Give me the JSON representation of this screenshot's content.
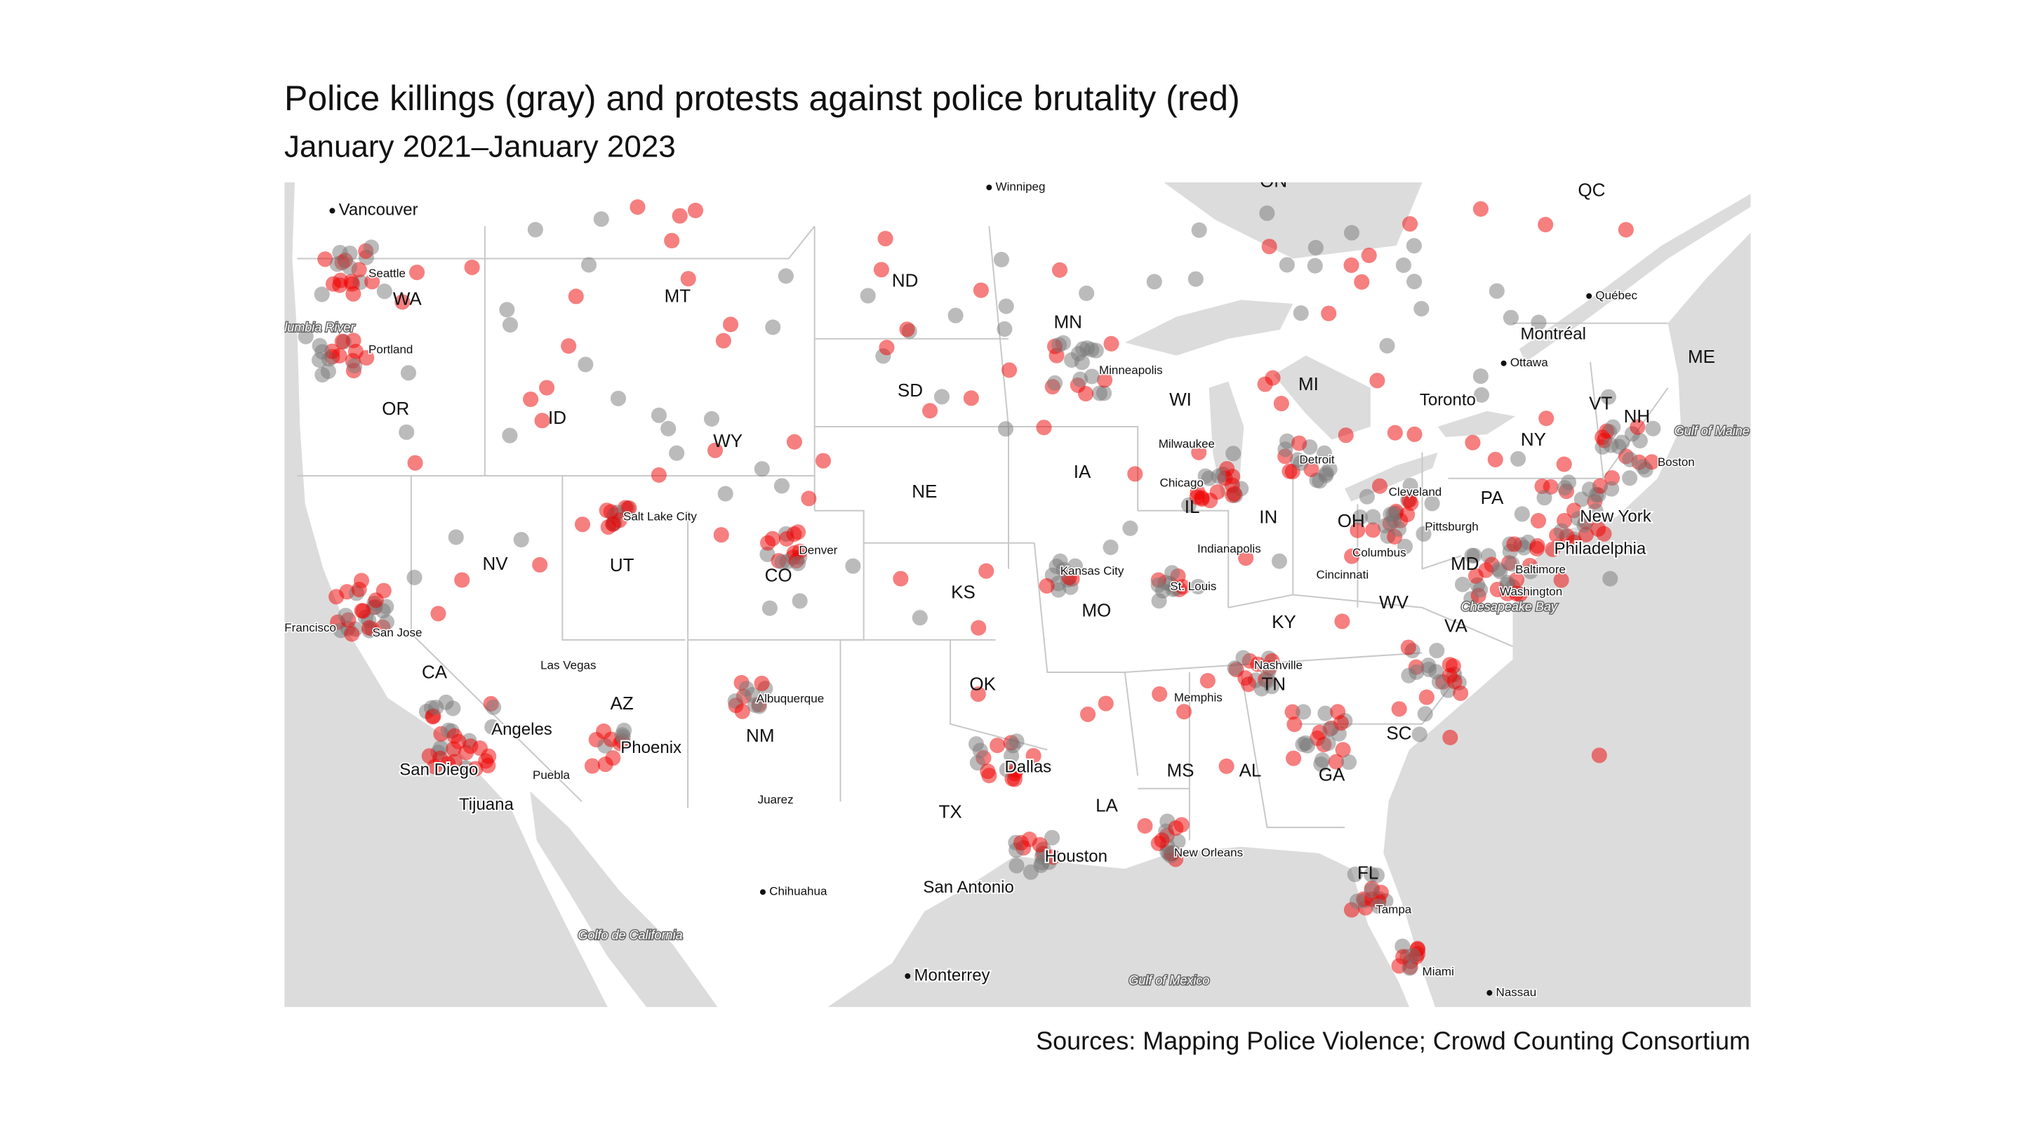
{
  "header": {
    "title": "Police killings (gray) and protests against police brutality (red)",
    "subtitle": "January 2021–January 2023"
  },
  "map": {
    "states": [
      "WA",
      "OR",
      "ID",
      "MT",
      "ND",
      "MN",
      "SD",
      "WY",
      "NE",
      "NV",
      "UT",
      "CO",
      "CA",
      "AZ",
      "NM",
      "KS",
      "OK",
      "TX",
      "IA",
      "MO",
      "WI",
      "IL",
      "MI",
      "IN",
      "OH",
      "KY",
      "TN",
      "MS",
      "AL",
      "GA",
      "LA",
      "FL",
      "SC",
      "VA",
      "WV",
      "MD",
      "PA",
      "NY",
      "VT",
      "NH",
      "ME",
      "QC",
      "ON"
    ],
    "cities": [
      "Vancouver",
      "Seattle",
      "Portland",
      "Winnipeg",
      "Minneapolis",
      "Milwaukee",
      "Chicago",
      "Detroit",
      "Toronto",
      "Ottawa",
      "Montréal",
      "Québec",
      "Boston",
      "New York",
      "Philadelphia",
      "Baltimore",
      "Washington",
      "Cleveland",
      "Pittsburgh",
      "Columbus",
      "Cincinnati",
      "Indianapolis",
      "St. Louis",
      "Kansas City",
      "Denver",
      "Salt Lake City",
      "Las Vegas",
      "Francisco",
      "San Jose",
      "Angeles",
      "San Diego",
      "Tijuana",
      "Puebla",
      "Phoenix",
      "Albuquerque",
      "Juarez",
      "Dallas",
      "Houston",
      "San Antonio",
      "Chihuahua",
      "Monterrey",
      "Nashville",
      "Memphis",
      "New Orleans",
      "Tampa",
      "Miami",
      "Nassau"
    ],
    "water": [
      "lumbia River",
      "Golfo de California",
      "Gulf of Mexico",
      "Chesapeake Bay",
      "Gulf of Maine"
    ]
  },
  "footer": {
    "source": "Sources: Mapping Police Violence; Crowd Counting Consortium"
  }
}
